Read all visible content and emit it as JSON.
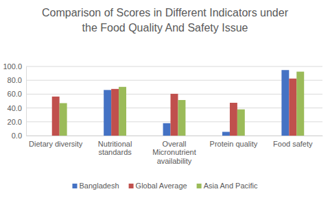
{
  "chart_data": {
    "type": "bar",
    "title": "Comparison of Scores in Different Indicators under the Food Quality And Safety Issue",
    "categories": [
      "Dietary diversity",
      "Nutritional standards",
      "Overall Micronutrient availability",
      "Protein quality",
      "Food safety"
    ],
    "series": [
      {
        "name": "Bangladesh",
        "color": "#4472c4",
        "values": [
          null,
          66,
          18,
          5.5,
          94.8
        ]
      },
      {
        "name": "Global Average",
        "color": "#c0504d",
        "values": [
          56.5,
          67.5,
          60.5,
          47.5,
          82.5
        ]
      },
      {
        "name": "Asia And Pacific",
        "color": "#9bbb59",
        "values": [
          47,
          70.5,
          51.5,
          38,
          92.5
        ]
      }
    ],
    "ylim": [
      0,
      100
    ],
    "yticks": [
      {
        "value": 0,
        "label": "0.0"
      },
      {
        "value": 20,
        "label": "20.0"
      },
      {
        "value": 40,
        "label": "40.0"
      },
      {
        "value": 60,
        "label": "60.0"
      },
      {
        "value": 80,
        "label": "80.0"
      },
      {
        "value": 100,
        "label": "100.0"
      }
    ],
    "grid": true,
    "legend": "bottom"
  }
}
